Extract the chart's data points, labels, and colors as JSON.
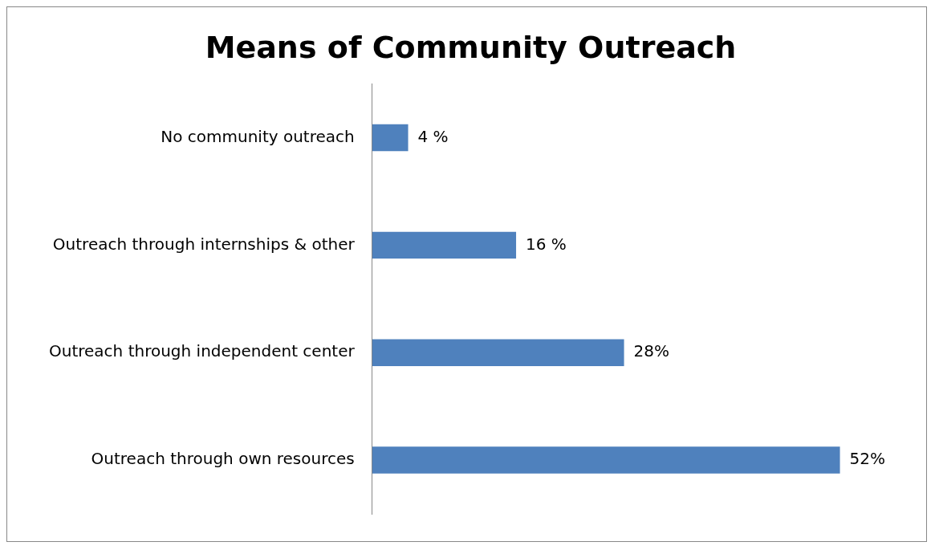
{
  "chart_data": {
    "type": "bar",
    "orientation": "horizontal",
    "title": "Means of Community Outreach",
    "categories": [
      "No community outreach",
      "Outreach through internships & other",
      "Outreach through independent center",
      "Outreach through own resources"
    ],
    "values": [
      4,
      16,
      28,
      52
    ],
    "value_labels": [
      "4 %",
      "16 %",
      "28%",
      "52%"
    ],
    "color": "#4f81bd",
    "legend": false
  }
}
